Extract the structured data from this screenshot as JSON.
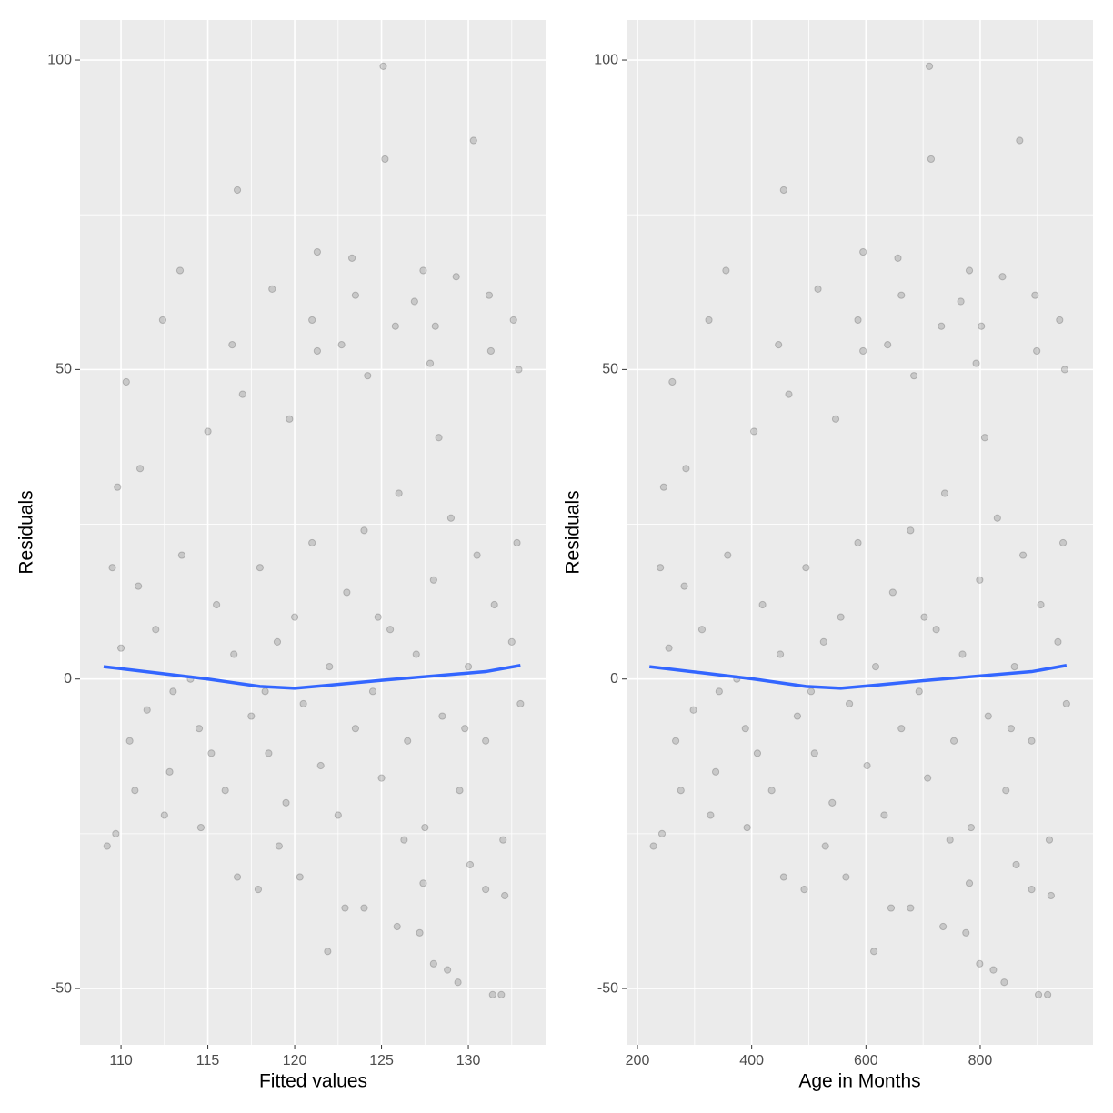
{
  "chart_data": [
    {
      "type": "scatter",
      "x_label": "Fitted values",
      "y_label": "Residuals",
      "xlim": [
        107.64,
        134.5
      ],
      "ylim": [
        -59.1,
        106.47
      ],
      "xticks": [
        110,
        115,
        120,
        125,
        130
      ],
      "yticks": [
        -50,
        0,
        50,
        100
      ],
      "x_minor_ticks": [
        112.5,
        117.5,
        122.5,
        127.5,
        132.5
      ],
      "y_minor_ticks": [
        -25,
        25,
        75
      ],
      "grid": true,
      "points": {
        "color": "#000000",
        "alpha": 0.15,
        "x": [
          125.1,
          130.3,
          125.2,
          116.7,
          113.4,
          121.3,
          123.3,
          127.4,
          129.3,
          118.7,
          123.5,
          126.9,
          131.2,
          112.4,
          121.0,
          125.8,
          128.1,
          132.6,
          116.4,
          122.7,
          121.3,
          131.3,
          110.3,
          124.2,
          127.8,
          132.9,
          119.7,
          117.0,
          115.0,
          109.8,
          111.1,
          128.3,
          119.1,
          116.7,
          117.9,
          120.3,
          121.9,
          122.9,
          124.0,
          125.9,
          127.2,
          128.0,
          128.8,
          129.4,
          131.4,
          131.9,
          130.1,
          132.1,
          109.2,
          109.7,
          112.5,
          114.6,
          127.4,
          131.0,
          110,
          110.5,
          111,
          111.5,
          112,
          112.8,
          113.5,
          114,
          114.5,
          115.5,
          116,
          116.5,
          117.5,
          118,
          118.5,
          119,
          119.5,
          120,
          120.5,
          121,
          121.5,
          122,
          122.5,
          123,
          123.5,
          124,
          124.5,
          125,
          125.5,
          126,
          126.5,
          127,
          127.5,
          128,
          128.5,
          129,
          129.5,
          130,
          130.5,
          131,
          131.5,
          132,
          132.5,
          133,
          109.5,
          110.8,
          113,
          115.2,
          118.3,
          124.8,
          126.3,
          129.8,
          132.8
        ],
        "y": [
          99,
          87,
          84,
          79,
          66,
          69,
          68,
          66,
          65,
          63,
          62,
          61,
          62,
          58,
          58,
          57,
          57,
          58,
          54,
          54,
          53,
          53,
          48,
          49,
          51,
          50,
          42,
          46,
          40,
          31,
          34,
          39,
          -27,
          -32,
          -34,
          -32,
          -44,
          -37,
          -37,
          -40,
          -41,
          -46,
          -47,
          -49,
          -51,
          -51,
          -30,
          -35,
          -27,
          -25,
          -22,
          -24,
          -33,
          -34,
          5,
          -10,
          15,
          -5,
          8,
          -15,
          20,
          0,
          -8,
          12,
          -18,
          4,
          -6,
          18,
          -12,
          6,
          -20,
          10,
          -4,
          22,
          -14,
          2,
          -22,
          14,
          -8,
          24,
          -2,
          -16,
          8,
          30,
          -10,
          4,
          -24,
          16,
          -6,
          26,
          -18,
          2,
          20,
          -10,
          12,
          -26,
          6,
          -4,
          18,
          -18,
          -2,
          -12,
          -2,
          10,
          -26,
          -8,
          22
        ]
      },
      "smooth": {
        "color": "#3366ff",
        "x": [
          109,
          112,
          115,
          118,
          120,
          122,
          125,
          128,
          131,
          133
        ],
        "y": [
          2,
          1,
          0,
          -1.2,
          -1.5,
          -1,
          -0.2,
          0.5,
          1.2,
          2.2
        ]
      }
    },
    {
      "type": "scatter",
      "x_label": "Age in Months",
      "y_label": "Residuals",
      "xlim": [
        180.9,
        997.4
      ],
      "ylim": [
        -59.1,
        106.47
      ],
      "xticks": [
        200,
        400,
        600,
        800
      ],
      "yticks": [
        -50,
        0,
        50,
        100
      ],
      "x_minor_ticks": [
        300,
        500,
        700,
        900
      ],
      "y_minor_ticks": [
        -25,
        25,
        75
      ],
      "grid": true,
      "points": {
        "color": "#000000",
        "alpha": 0.15,
        "x": [
          711,
          869,
          714,
          456,
          355,
          595,
          656,
          781,
          839,
          516,
          662,
          766,
          896,
          325,
          586,
          732,
          802,
          939,
          447,
          638,
          595,
          899,
          261,
          684,
          793,
          948,
          547,
          465,
          404,
          246,
          285,
          808,
          529,
          456,
          492,
          565,
          614,
          644,
          678,
          735,
          775,
          799,
          823,
          842,
          902,
          918,
          863,
          924,
          228,
          243,
          328,
          392,
          781,
          890,
          255,
          267,
          282,
          298,
          313,
          337,
          358,
          374,
          389,
          419,
          435,
          450,
          480,
          495,
          510,
          526,
          541,
          556,
          571,
          586,
          602,
          617,
          632,
          647,
          662,
          678,
          693,
          708,
          723,
          738,
          754,
          769,
          784,
          799,
          814,
          830,
          845,
          860,
          875,
          890,
          906,
          921,
          936,
          951,
          240,
          276,
          343,
          410,
          504,
          702,
          747,
          854,
          945
        ],
        "y": [
          99,
          87,
          84,
          79,
          66,
          69,
          68,
          66,
          65,
          63,
          62,
          61,
          62,
          58,
          58,
          57,
          57,
          58,
          54,
          54,
          53,
          53,
          48,
          49,
          51,
          50,
          42,
          46,
          40,
          31,
          34,
          39,
          -27,
          -32,
          -34,
          -32,
          -44,
          -37,
          -37,
          -40,
          -41,
          -46,
          -47,
          -49,
          -51,
          -51,
          -30,
          -35,
          -27,
          -25,
          -22,
          -24,
          -33,
          -34,
          5,
          -10,
          15,
          -5,
          8,
          -15,
          20,
          0,
          -8,
          12,
          -18,
          4,
          -6,
          18,
          -12,
          6,
          -20,
          10,
          -4,
          22,
          -14,
          2,
          -22,
          14,
          -8,
          24,
          -2,
          -16,
          8,
          30,
          -10,
          4,
          -24,
          16,
          -6,
          26,
          -18,
          2,
          20,
          -10,
          12,
          -26,
          6,
          -4,
          18,
          -18,
          -2,
          -12,
          -2,
          10,
          -26,
          -8,
          22
        ]
      },
      "smooth": {
        "color": "#3366ff",
        "x": [
          221,
          313,
          404,
          495,
          556,
          617,
          708,
          799,
          890,
          951
        ],
        "y": [
          2,
          1,
          0,
          -1.2,
          -1.5,
          -1,
          -0.2,
          0.5,
          1.2,
          2.2
        ]
      }
    }
  ]
}
